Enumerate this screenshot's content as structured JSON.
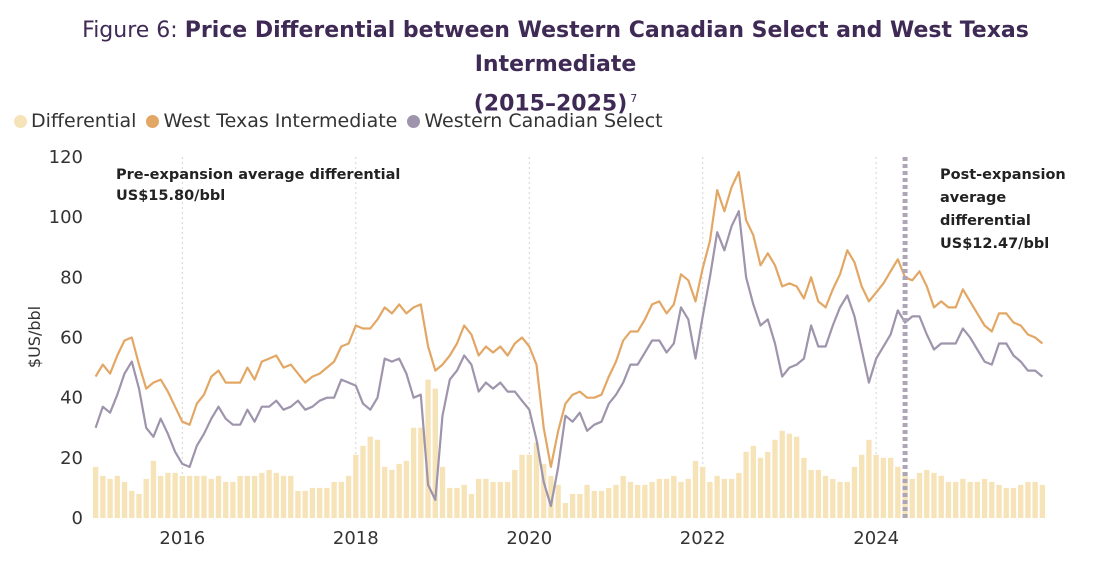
{
  "title": {
    "prefix": "Figure 6: ",
    "main": "Price Differential between Western Canadian Select and West Texas Intermediate",
    "years": "(2015–2025)",
    "footnote": "7"
  },
  "colors": {
    "differential": "#f6e3b8",
    "wti": "#e3a765",
    "wcs": "#9e94ac",
    "divider": "#aea5b6",
    "title": "#3f2a56"
  },
  "chart_data": {
    "type": "line",
    "title": "Price Differential between Western Canadian Select and West Texas Intermediate (2015–2025)",
    "ylabel": "$US/bbl",
    "xlabel": "",
    "ylim": [
      0,
      120
    ],
    "yticks": [
      0,
      20,
      40,
      60,
      80,
      100,
      120
    ],
    "xticks": [
      "2016",
      "2018",
      "2020",
      "2022",
      "2024"
    ],
    "x_start": "2015-01",
    "x_end": "2025-12",
    "grid": "vertical dotted",
    "legend": [
      "Differential",
      "West Texas Intermediate",
      "Western Canadian Select"
    ],
    "legend_position": "top-left",
    "divider_date": "2024-05",
    "annotations": [
      {
        "id": "pre",
        "lines": [
          "Pre-expansion average differential",
          "US$15.80/bbl"
        ]
      },
      {
        "id": "post",
        "lines": [
          "Post-expansion",
          "average",
          "differential",
          "US$12.47/bbl"
        ]
      }
    ],
    "series": [
      {
        "name": "West Texas Intermediate",
        "type": "line",
        "values": [
          47,
          51,
          48,
          54,
          59,
          60,
          51,
          43,
          45,
          46,
          42,
          37,
          32,
          31,
          38,
          41,
          47,
          49,
          45,
          45,
          45,
          50,
          46,
          52,
          53,
          54,
          50,
          51,
          48,
          45,
          47,
          48,
          50,
          52,
          57,
          58,
          64,
          63,
          63,
          66,
          70,
          68,
          71,
          68,
          70,
          71,
          57,
          49,
          51,
          54,
          58,
          64,
          61,
          54,
          57,
          55,
          57,
          54,
          58,
          60,
          57,
          51,
          30,
          17,
          29,
          38,
          41,
          42,
          40,
          40,
          41,
          47,
          52,
          59,
          62,
          62,
          66,
          71,
          72,
          68,
          71,
          81,
          79,
          72,
          83,
          92,
          109,
          102,
          110,
          115,
          99,
          94,
          84,
          88,
          84,
          77,
          78,
          77,
          73,
          80,
          72,
          70,
          76,
          81,
          89,
          85,
          77,
          72,
          75,
          78,
          82,
          86,
          80,
          79,
          82,
          77,
          70,
          72,
          70,
          70,
          76,
          72,
          68,
          64,
          62,
          68,
          68,
          65,
          64,
          61,
          60,
          58
        ]
      },
      {
        "name": "Western Canadian Select",
        "type": "line",
        "values": [
          30,
          37,
          35,
          41,
          48,
          52,
          43,
          30,
          27,
          33,
          28,
          22,
          18,
          17,
          24,
          28,
          33,
          37,
          33,
          31,
          31,
          36,
          32,
          37,
          37,
          39,
          36,
          37,
          39,
          36,
          37,
          39,
          40,
          40,
          46,
          45,
          44,
          38,
          36,
          40,
          53,
          52,
          53,
          48,
          40,
          41,
          11,
          6,
          34,
          46,
          49,
          54,
          51,
          42,
          45,
          43,
          45,
          42,
          42,
          39,
          36,
          26,
          12,
          4,
          17,
          34,
          32,
          35,
          29,
          31,
          32,
          38,
          41,
          45,
          51,
          51,
          55,
          59,
          59,
          55,
          58,
          70,
          66,
          53,
          67,
          80,
          95,
          89,
          97,
          102,
          80,
          71,
          64,
          66,
          58,
          47,
          50,
          51,
          53,
          64,
          57,
          57,
          64,
          70,
          74,
          67,
          56,
          45,
          53,
          57,
          61,
          69,
          65,
          67,
          67,
          61,
          56,
          58,
          58,
          58,
          63,
          60,
          56,
          52,
          51,
          58,
          58,
          54,
          52,
          49,
          49,
          47
        ]
      },
      {
        "name": "Differential",
        "type": "bar",
        "values": [
          17,
          14,
          13,
          14,
          12,
          9,
          8,
          13,
          19,
          14,
          15,
          15,
          14,
          14,
          14,
          14,
          13,
          14,
          12,
          12,
          14,
          14,
          14,
          15,
          16,
          15,
          14,
          14,
          9,
          9,
          10,
          10,
          10,
          12,
          12,
          14,
          21,
          24,
          27,
          26,
          17,
          16,
          18,
          19,
          30,
          30,
          46,
          43,
          17,
          10,
          10,
          11,
          8,
          13,
          13,
          12,
          12,
          12,
          16,
          21,
          21,
          25,
          18,
          14,
          11,
          5,
          8,
          8,
          11,
          9,
          9,
          10,
          11,
          14,
          12,
          11,
          11,
          12,
          13,
          13,
          14,
          12,
          13,
          19,
          17,
          12,
          14,
          13,
          13,
          15,
          22,
          24,
          20,
          22,
          26,
          29,
          28,
          27,
          20,
          16,
          16,
          14,
          13,
          12,
          12,
          17,
          21,
          26,
          21,
          20,
          20,
          17,
          15,
          13,
          15,
          16,
          15,
          14,
          12,
          12,
          13,
          12,
          12,
          13,
          12,
          11,
          10,
          10,
          11,
          12,
          12,
          11
        ]
      }
    ]
  }
}
